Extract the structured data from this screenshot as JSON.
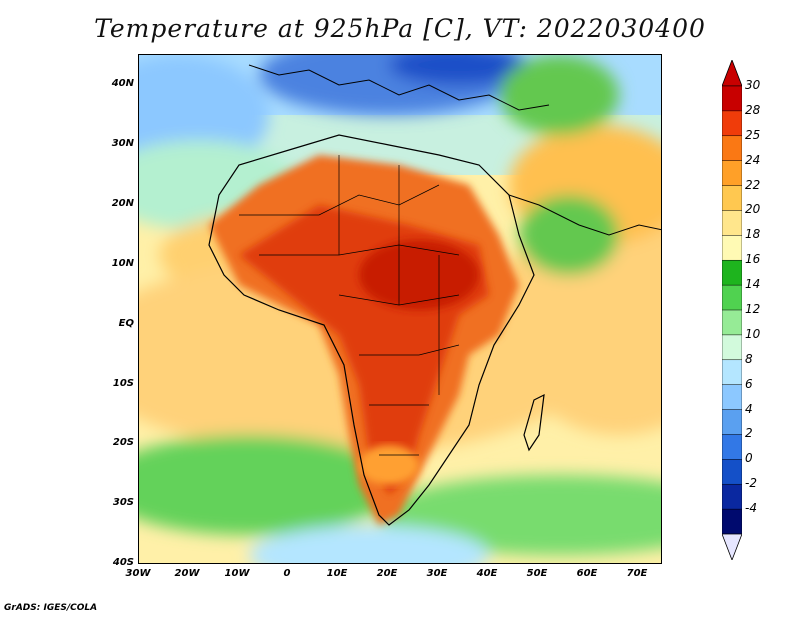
{
  "title": "Temperature at 925hPa [C], VT: 2022030400",
  "credit": "GrADS: IGES/COLA",
  "map": {
    "lat_labels": [
      "40N",
      "30N",
      "20N",
      "10N",
      "EQ",
      "10S",
      "20S",
      "30S",
      "40S"
    ],
    "lon_labels": [
      "30W",
      "20W",
      "10W",
      "0",
      "10E",
      "20E",
      "30E",
      "40E",
      "50E",
      "60E",
      "70E"
    ],
    "colors": {
      "ocean_cool": "#b4e6ff",
      "warm_sea": "#ffe08c",
      "hot": "#e64614",
      "hottest": "#c81e00",
      "green": "#64c850",
      "blue": "#5a8ce6"
    }
  },
  "colorbar": {
    "labels": [
      "30",
      "28",
      "25",
      "24",
      "22",
      "20",
      "18",
      "16",
      "14",
      "12",
      "10",
      "8",
      "6",
      "4",
      "2",
      "0",
      "-2",
      "-4"
    ],
    "colors": [
      "#c80000",
      "#f03c0a",
      "#fa7814",
      "#ffa028",
      "#ffc850",
      "#ffe68c",
      "#fffab4",
      "#1eb41e",
      "#50d250",
      "#96eb96",
      "#d2fadc",
      "#b4e6ff",
      "#8cc8ff",
      "#5aa0f0",
      "#3278e6",
      "#1450c8",
      "#0a28a0",
      "#000a6e"
    ],
    "tip_high_color": "#c80000",
    "tip_low_color": "#e6e6ff"
  }
}
